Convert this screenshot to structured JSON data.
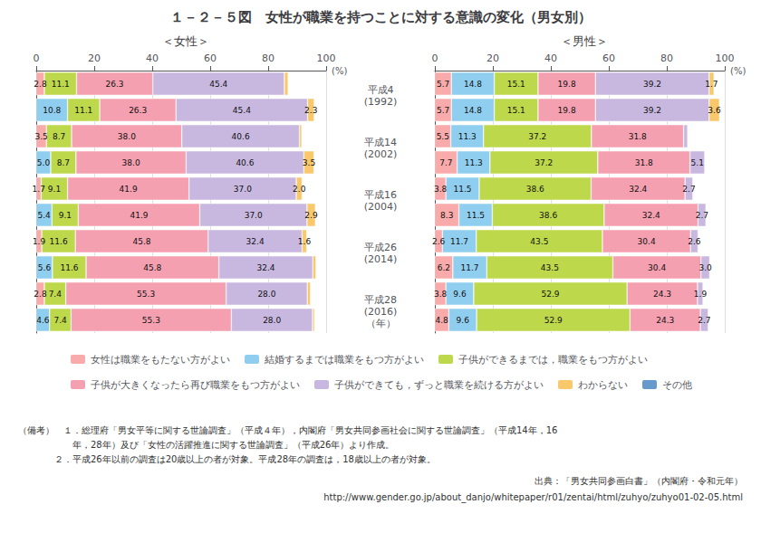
{
  "title": "１－２－５図　女性が職業を持つことに対する意識の変化（男女別）",
  "legend": "bottom",
  "annotations": [
    "（備考）　１．総理府「男女平等に関する世論調査」（平成４年），内閣府「男女共同参画社会に関する世論調査」（平成14年，16",
    "　　　　　　年，28年）及び「女性の活躍推進に関する世論調査」（平成26年）より作成。",
    "　　　　２．平成26年以前の調査は20歳以上の者が対象。平成28年の調査は，18歳以上の者が対象。",
    "出典：「男女共同参画白書」（内閣府・令和元年）",
    "http://www.gender.go.jp/about_danjo/whitepaper/r01/zentai/html/zuhyo/zuhyo01-02-05.html"
  ],
  "chart_data": [
    {
      "type": "bar",
      "title": "＜女性＞",
      "orientation": "horizontal",
      "stacked": true,
      "data_labels": true,
      "grid": true,
      "xlabel": "(%)",
      "xlim": [
        0,
        100
      ],
      "xticks": [
        0,
        20,
        40,
        60,
        80,
        100
      ],
      "categories": [
        "平成4\n(1992)",
        null,
        "平成14\n(2002)",
        null,
        "平成16\n(2004)",
        null,
        "平成26\n(2014)",
        null,
        "平成28\n(2016)\n（年）",
        null
      ],
      "series": [
        {
          "name": "女性は職業をもたない方がよい",
          "color": "#f9aaaa",
          "values": [
            2.8,
            null,
            3.5,
            null,
            1.7,
            null,
            1.9,
            null,
            2.8,
            null
          ],
          "value_labels": [
            "2.8",
            null,
            "3.5",
            null,
            "1.7",
            null,
            "1.9",
            null,
            "2.8",
            null
          ]
        },
        {
          "name": "結婚するまでは職業をもつ方がよい",
          "color": "#90cef0",
          "values": [
            null,
            10.8,
            null,
            5.0,
            null,
            5.4,
            null,
            5.6,
            null,
            4.6
          ],
          "value_labels": [
            null,
            "10.8",
            null,
            "5.0",
            null,
            "5.4",
            null,
            "5.6",
            null,
            "4.6"
          ]
        },
        {
          "name": "子供ができるまでは，職業をもつ方がよい",
          "color": "#bdd84a",
          "values": [
            11.1,
            11.1,
            8.7,
            8.7,
            9.1,
            9.1,
            11.6,
            11.6,
            7.4,
            7.4
          ],
          "value_labels": [
            "11.1",
            "11.1",
            "8.7",
            "8.7",
            "9.1",
            "9.1",
            "11.6",
            "11.6",
            "7.4",
            "7.4"
          ]
        },
        {
          "name": "子供が大きくなったら再び職業をもつ方がよい",
          "color": "#f4a0b0",
          "values": [
            26.3,
            26.3,
            38.0,
            38.0,
            41.9,
            41.9,
            45.8,
            45.8,
            55.3,
            55.3
          ],
          "value_labels": [
            "26.3",
            "26.3",
            "38.0",
            "38.0",
            "41.9",
            "41.9",
            "45.8",
            "45.8",
            "55.3",
            "55.3"
          ]
        },
        {
          "name": "子供ができても，ずっと職業を続ける方がよい",
          "color": "#c8b8e0",
          "values": [
            45.4,
            45.4,
            40.6,
            40.6,
            37.0,
            37.0,
            32.4,
            32.4,
            28.0,
            28.0
          ],
          "value_labels": [
            "45.4",
            "45.4",
            "40.6",
            "40.6",
            "37.0",
            "37.0",
            "32.4",
            "32.4",
            "28.0",
            "28.0"
          ]
        },
        {
          "name": "わからない",
          "color": "#f8c86a",
          "values": [
            1.3,
            2.3,
            0.8,
            3.5,
            2.0,
            2.9,
            1.6,
            1.1,
            1.1,
            0.7
          ],
          "value_labels": [
            null,
            "2.3",
            null,
            "3.5",
            "2.0",
            "2.9",
            "1.6",
            null,
            null,
            null
          ]
        }
      ]
    },
    {
      "type": "bar",
      "title": "＜男性＞",
      "orientation": "horizontal",
      "stacked": true,
      "data_labels": true,
      "grid": true,
      "tick_labels": "x",
      "xlabel": "(%)",
      "xlim": [
        0,
        100
      ],
      "xticks": [
        0,
        20,
        40,
        60,
        80,
        100
      ],
      "categories": [
        "平成4\n(1992)",
        null,
        "平成14\n(2002)",
        null,
        "平成16\n(2004)",
        null,
        "平成26\n(2014)",
        null,
        "平成28\n(2016)\n（年）",
        null
      ],
      "series": [
        {
          "name": "女性は職業をもたない方がよい",
          "color": "#f9aaaa",
          "values": [
            5.7,
            5.7,
            5.5,
            7.7,
            3.8,
            8.3,
            2.6,
            6.2,
            3.8,
            4.8
          ],
          "value_labels": [
            "5.7",
            "5.7",
            "5.5",
            "7.7",
            "3.8",
            "8.3",
            "2.6",
            "6.2",
            "3.8",
            "4.8"
          ]
        },
        {
          "name": "結婚するまでは職業をもつ方がよい",
          "color": "#90cef0",
          "values": [
            14.8,
            14.8,
            11.3,
            11.3,
            11.5,
            11.5,
            11.7,
            11.7,
            9.6,
            9.6
          ],
          "value_labels": [
            "14.8",
            "14.8",
            "11.3",
            "11.3",
            "11.5",
            "11.5",
            "11.7",
            "11.7",
            "9.6",
            "9.6"
          ]
        },
        {
          "name": "子供ができるまでは，職業をもつ方がよい",
          "color": "#bdd84a",
          "values": [
            15.1,
            15.1,
            37.2,
            37.2,
            38.6,
            38.6,
            43.5,
            43.5,
            52.9,
            52.9
          ],
          "value_labels": [
            "15.1",
            "15.1",
            "37.2",
            "37.2",
            "38.6",
            "38.6",
            "43.5",
            "43.5",
            "52.9",
            "52.9"
          ]
        },
        {
          "name": "子供が大きくなったら再び職業をもつ方がよい",
          "color": "#f4a0b0",
          "values": [
            19.8,
            19.8,
            31.8,
            31.8,
            32.4,
            32.4,
            30.4,
            30.4,
            24.3,
            24.3
          ],
          "value_labels": [
            "19.8",
            "19.8",
            "31.8",
            "31.8",
            "32.4",
            "32.4",
            "30.4",
            "30.4",
            "24.3",
            "24.3"
          ]
        },
        {
          "name": "子供ができても，ずっと職業を続ける方がよい",
          "color": "#c8b8e0",
          "values": [
            39.2,
            39.2,
            1.4,
            5.1,
            2.7,
            2.7,
            2.6,
            3.0,
            1.9,
            2.7
          ],
          "value_labels": [
            "39.2",
            "39.2",
            null,
            "5.1",
            "2.7",
            "2.7",
            "2.6",
            "3.0",
            "1.9",
            "2.7"
          ]
        },
        {
          "name": "わからない",
          "color": "#f8c86a",
          "values": [
            1.7,
            3.6,
            null,
            null,
            null,
            null,
            null,
            null,
            null,
            null
          ],
          "value_labels": [
            "1.7",
            "3.6",
            null,
            null,
            null,
            null,
            null,
            null,
            null,
            null
          ]
        },
        {
          "name": "その他",
          "color": "#6699cc",
          "values": [
            null,
            null,
            null,
            null,
            null,
            null,
            null,
            null,
            null,
            null
          ]
        }
      ]
    }
  ]
}
